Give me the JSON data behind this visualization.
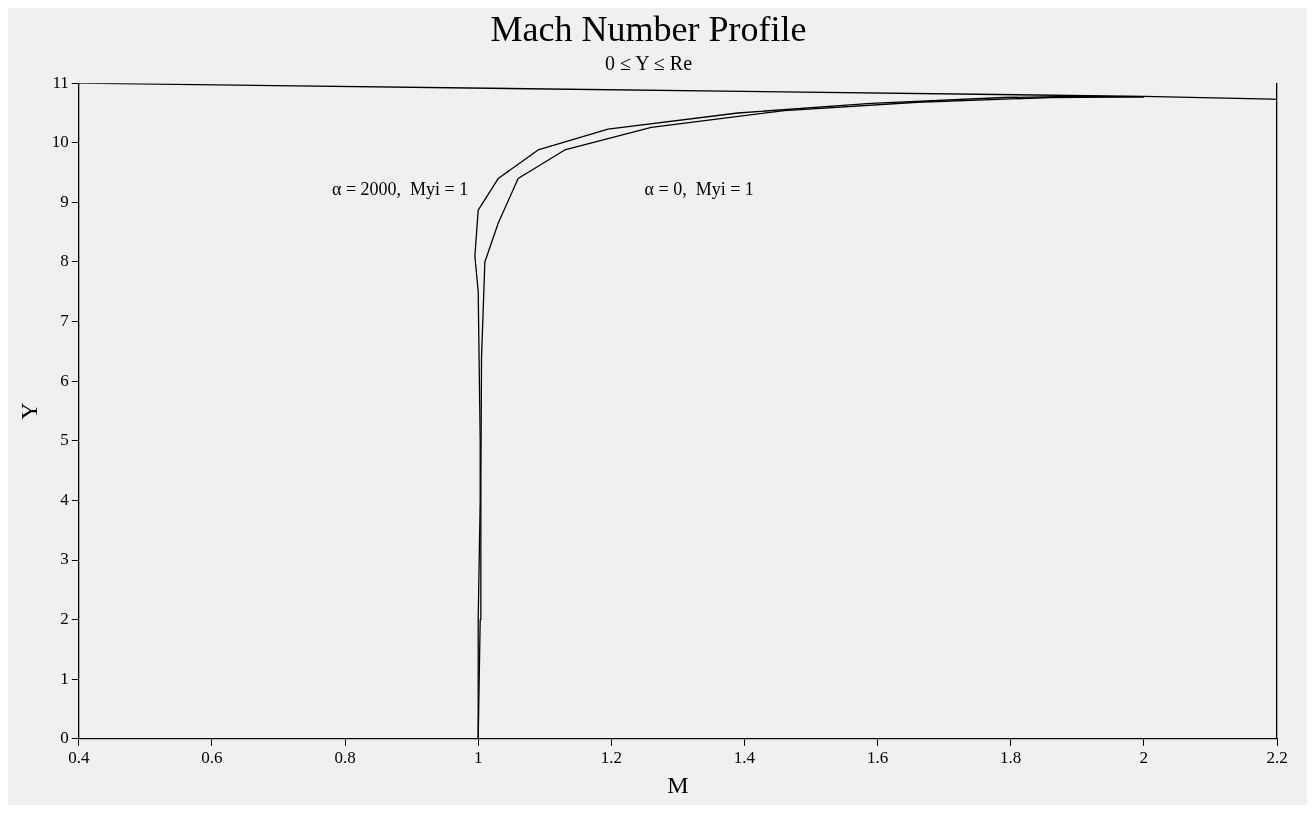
{
  "chart_data": {
    "type": "line",
    "title": "Mach Number Profile",
    "subtitle": "0 ≤ Y ≤ Re",
    "xlabel": "M",
    "ylabel": "Y",
    "xlim": [
      0.4,
      2.2
    ],
    "ylim": [
      0,
      11
    ],
    "xticks": [
      0.4,
      0.6,
      0.8,
      1,
      1.2,
      1.4,
      1.6,
      1.8,
      2,
      2.2
    ],
    "yticks": [
      0,
      1,
      2,
      3,
      4,
      5,
      6,
      7,
      8,
      9,
      10,
      11
    ],
    "grid": false,
    "legend": false,
    "marker": "none",
    "line_style": "solid",
    "series": [
      {
        "name": "α = 2000,  Myi = 1",
        "color": "#000000",
        "x": [
          1.0,
          1.0,
          1.003,
          1.003,
          1.0,
          0.995,
          1.0,
          1.03,
          1.09,
          1.195,
          1.39,
          1.59,
          1.79,
          1.89,
          2.0
        ],
        "values": [
          0,
          2,
          4,
          5,
          7.5,
          8.1,
          8.87,
          9.4,
          9.88,
          10.23,
          10.5,
          10.66,
          10.76,
          10.78,
          10.77
        ]
      },
      {
        "name": "α = 0,  Myi = 1",
        "color": "#000000",
        "x": [
          1.0,
          1.003,
          1.004,
          1.005,
          1.01,
          1.03,
          1.06,
          1.13,
          1.26,
          1.46,
          1.66,
          1.86,
          2.0
        ],
        "values": [
          0,
          2,
          4.25,
          6.4,
          8,
          8.65,
          9.4,
          9.88,
          10.26,
          10.54,
          10.68,
          10.76,
          10.77
        ]
      },
      {
        "color": "#000000",
        "x": [
          0.4,
          2.0,
          2.2
        ],
        "values": [
          11,
          10.78,
          10.73
        ]
      }
    ]
  }
}
